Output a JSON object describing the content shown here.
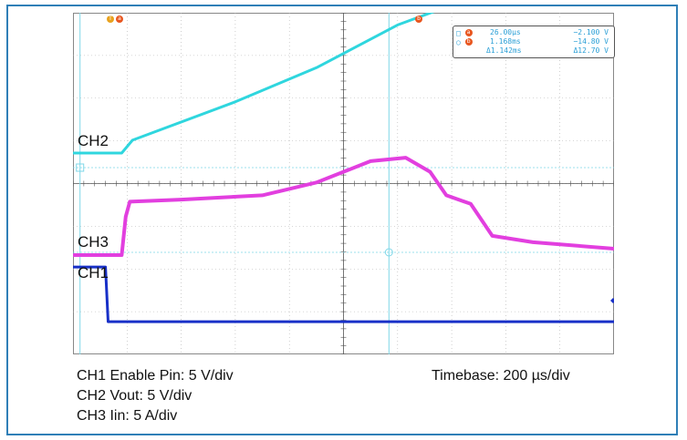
{
  "chart_data": {
    "type": "line",
    "title": "",
    "xlabel": "",
    "ylabel": "",
    "xlim": [
      0,
      2000
    ],
    "x_unit": "µs",
    "divisions": {
      "x": 10,
      "y": 8
    },
    "grid": true,
    "series": [
      {
        "name": "CH2",
        "color": "#2fd6de",
        "x": [
          0,
          180,
          220,
          600,
          900,
          1200,
          1500,
          1600,
          1700,
          2000
        ],
        "y": [
          0,
          0,
          0.3,
          1.2,
          2.0,
          3.0,
          3.7,
          3.9,
          3.9,
          3.9
        ]
      },
      {
        "name": "CH3",
        "color": "#e23fdf",
        "x": [
          0,
          180,
          195,
          210,
          400,
          700,
          900,
          1100,
          1230,
          1320,
          1380,
          1470,
          1550,
          1700,
          2000
        ],
        "y": [
          0,
          0,
          0.9,
          1.25,
          1.3,
          1.4,
          1.7,
          2.2,
          2.28,
          1.95,
          1.4,
          1.2,
          0.45,
          0.3,
          0.15
        ]
      },
      {
        "name": "CH1",
        "color": "#1830c8",
        "x": [
          0,
          120,
          130,
          180,
          2000
        ],
        "y": [
          1.3,
          1.3,
          0.02,
          0.02,
          0.02
        ]
      }
    ]
  },
  "channel_labels": {
    "ch2": "CH2",
    "ch3": "CH3",
    "ch1": "CH1"
  },
  "cursor_readout": {
    "a": {
      "time": "26.00µs",
      "value": "−2.100 V",
      "marker": "a"
    },
    "b": {
      "time": "1.168ms",
      "value": "−14.80 V",
      "marker": "b"
    },
    "delta": {
      "time": "Δ1.142ms",
      "value": "Δ12.70 V"
    }
  },
  "top_markers": {
    "trigger": "T",
    "a": "a",
    "b": "b"
  },
  "captions": {
    "line1": "CH1 Enable Pin: 5 V/div",
    "line2": "CH2 Vout: 5 V/div",
    "line3": "CH3 Iin: 5 A/div",
    "timebase": "Timebase: 200 µs/div"
  },
  "colors": {
    "frame": "#2f7fb7",
    "cursor": "#7fd7e8",
    "grid": "#b0b0b0",
    "marker": "#e8561f"
  }
}
